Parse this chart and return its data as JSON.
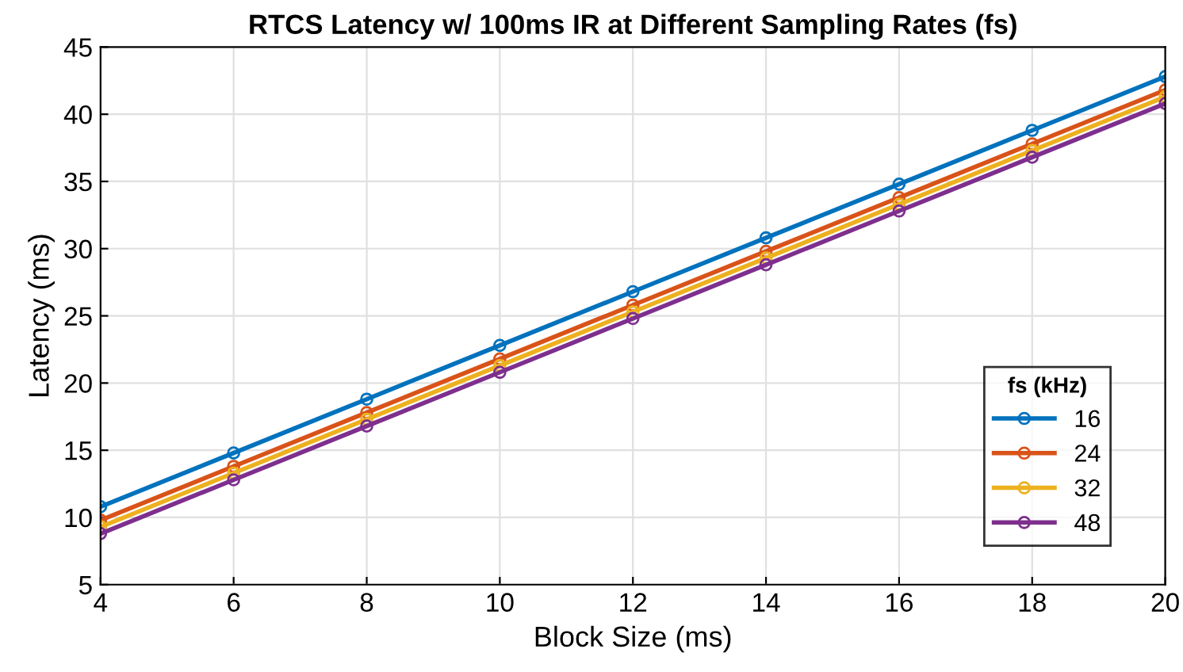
{
  "chart_data": {
    "type": "line",
    "title": "RTCS Latency w/ 100ms IR at Different Sampling Rates (fs)",
    "xlabel": "Block Size (ms)",
    "ylabel": "Latency (ms)",
    "legend_title": "fs (kHz)",
    "x": [
      4,
      6,
      8,
      10,
      12,
      14,
      16,
      18,
      20
    ],
    "series": [
      {
        "name": "16",
        "color": "#0072bd",
        "values": [
          10.8,
          14.8,
          18.8,
          22.8,
          26.8,
          30.8,
          34.8,
          38.8,
          42.8
        ]
      },
      {
        "name": "24",
        "color": "#d95319",
        "values": [
          9.8,
          13.8,
          17.8,
          21.8,
          25.8,
          29.8,
          33.8,
          37.8,
          41.8
        ]
      },
      {
        "name": "32",
        "color": "#edb120",
        "values": [
          9.3,
          13.3,
          17.3,
          21.3,
          25.3,
          29.3,
          33.3,
          37.3,
          41.3
        ]
      },
      {
        "name": "48",
        "color": "#7e2f8e",
        "values": [
          8.8,
          12.8,
          16.8,
          20.8,
          24.8,
          28.8,
          32.8,
          36.8,
          40.8
        ]
      }
    ],
    "xlim": [
      4,
      20
    ],
    "xticks": [
      4,
      6,
      8,
      10,
      12,
      14,
      16,
      18,
      20
    ],
    "ylim": [
      5,
      45
    ],
    "yticks": [
      5,
      10,
      15,
      20,
      25,
      30,
      35,
      40,
      45
    ],
    "grid": true,
    "legend": "bottom right",
    "marker": "circle",
    "line_style": "solid"
  }
}
